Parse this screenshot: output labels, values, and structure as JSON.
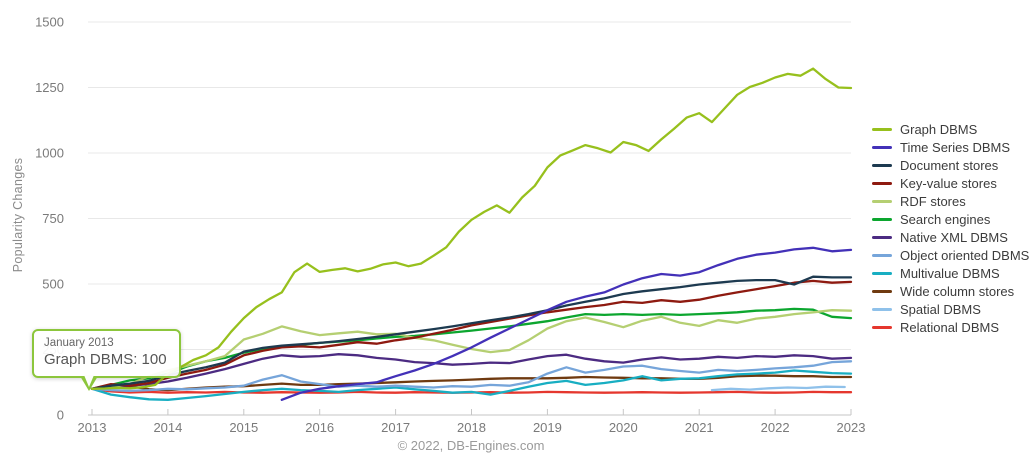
{
  "tooltip": {
    "title": "January 2013",
    "value": "Graph DBMS: 100"
  },
  "footer": "© 2022, DB-Engines.com",
  "chart_data": {
    "type": "line",
    "title": "",
    "xlabel": "",
    "ylabel": "Popularity Changes",
    "x_years": [
      2013,
      2014,
      2015,
      2016,
      2017,
      2018,
      2019,
      2020,
      2021,
      2022,
      2023
    ],
    "y_ticks": [
      0,
      250,
      500,
      750,
      1000,
      1250,
      1500
    ],
    "ylim": [
      0,
      1500
    ],
    "grid": true,
    "legend_position": "right",
    "x_unit": "months since January 2013",
    "series": [
      {
        "name": "Graph DBMS",
        "color": "#97c01d",
        "start_month": 0,
        "step_months": 2,
        "values": [
          100,
          101,
          104,
          102,
          106,
          115,
          158,
          183,
          210,
          228,
          258,
          318,
          370,
          412,
          442,
          468,
          545,
          578,
          546,
          554,
          560,
          548,
          558,
          575,
          582,
          568,
          578,
          608,
          640,
          700,
          745,
          775,
          800,
          772,
          830,
          875,
          945,
          990,
          1010,
          1030,
          1018,
          1002,
          1042,
          1030,
          1008,
          1052,
          1092,
          1135,
          1152,
          1118,
          1170,
          1222,
          1252,
          1268,
          1288,
          1302,
          1295,
          1322,
          1282,
          1250,
          1248
        ]
      },
      {
        "name": "Time Series DBMS",
        "color": "#4331b8",
        "start_month": 30,
        "step_months": 3,
        "values": [
          58,
          85,
          100,
          110,
          118,
          125,
          148,
          170,
          195,
          225,
          258,
          295,
          330,
          365,
          400,
          432,
          452,
          468,
          498,
          522,
          538,
          532,
          545,
          572,
          596,
          612,
          620,
          632,
          638,
          625,
          630
        ]
      },
      {
        "name": "Document stores",
        "color": "#1d3a50",
        "start_month": 0,
        "step_months": 3,
        "values": [
          100,
          112,
          120,
          130,
          152,
          168,
          182,
          200,
          242,
          256,
          265,
          270,
          275,
          282,
          290,
          298,
          308,
          318,
          328,
          338,
          350,
          362,
          372,
          385,
          400,
          418,
          432,
          445,
          462,
          472,
          480,
          488,
          498,
          505,
          512,
          515,
          515,
          498,
          528,
          525,
          525
        ]
      },
      {
        "name": "Key-value stores",
        "color": "#8e1a10",
        "start_month": 0,
        "step_months": 3,
        "values": [
          100,
          118,
          112,
          122,
          142,
          158,
          172,
          192,
          228,
          245,
          258,
          262,
          258,
          268,
          278,
          272,
          285,
          295,
          310,
          325,
          342,
          355,
          368,
          380,
          392,
          402,
          412,
          420,
          432,
          428,
          438,
          432,
          440,
          455,
          468,
          480,
          492,
          505,
          512,
          505,
          508
        ]
      },
      {
        "name": "RDF stores",
        "color": "#b5cf72",
        "start_month": 0,
        "step_months": 3,
        "values": [
          100,
          108,
          118,
          148,
          170,
          188,
          205,
          225,
          288,
          310,
          338,
          320,
          305,
          312,
          318,
          308,
          310,
          295,
          285,
          268,
          252,
          240,
          248,
          285,
          330,
          358,
          372,
          355,
          335,
          360,
          375,
          352,
          340,
          362,
          352,
          368,
          375,
          385,
          392,
          400,
          398
        ]
      },
      {
        "name": "Search engines",
        "color": "#0ca62f",
        "start_month": 0,
        "step_months": 3,
        "values": [
          100,
          115,
          132,
          140,
          158,
          185,
          205,
          218,
          238,
          252,
          262,
          268,
          275,
          280,
          285,
          292,
          298,
          302,
          308,
          315,
          322,
          330,
          338,
          348,
          358,
          372,
          385,
          382,
          385,
          382,
          385,
          382,
          385,
          388,
          392,
          398,
          400,
          405,
          402,
          375,
          370
        ]
      },
      {
        "name": "Native XML DBMS",
        "color": "#4c2b82",
        "start_month": 0,
        "step_months": 3,
        "values": [
          100,
          108,
          112,
          118,
          128,
          142,
          158,
          175,
          195,
          215,
          228,
          222,
          225,
          232,
          228,
          218,
          212,
          202,
          198,
          192,
          195,
          200,
          198,
          212,
          225,
          230,
          215,
          205,
          200,
          212,
          220,
          212,
          215,
          222,
          218,
          225,
          222,
          228,
          225,
          215,
          218
        ]
      },
      {
        "name": "Object oriented DBMS",
        "color": "#76a5da",
        "start_month": 0,
        "step_months": 3,
        "values": [
          100,
          95,
          92,
          95,
          100,
          98,
          102,
          105,
          112,
          135,
          152,
          128,
          118,
          108,
          112,
          108,
          112,
          108,
          105,
          110,
          108,
          115,
          112,
          125,
          158,
          182,
          162,
          172,
          185,
          188,
          175,
          168,
          162,
          172,
          168,
          172,
          178,
          182,
          188,
          202,
          205
        ]
      },
      {
        "name": "Multivalue DBMS",
        "color": "#18aec2",
        "start_month": 0,
        "step_months": 3,
        "values": [
          100,
          78,
          68,
          60,
          58,
          65,
          72,
          80,
          88,
          95,
          100,
          95,
          92,
          88,
          95,
          100,
          105,
          98,
          92,
          85,
          88,
          78,
          92,
          108,
          122,
          130,
          115,
          122,
          132,
          148,
          132,
          138,
          140,
          148,
          155,
          158,
          162,
          170,
          165,
          160,
          158
        ]
      },
      {
        "name": "Wide column stores",
        "color": "#6f3a10",
        "start_month": 0,
        "step_months": 3,
        "values": [
          100,
          105,
          110,
          98,
          95,
          100,
          105,
          108,
          110,
          115,
          120,
          115,
          115,
          118,
          120,
          122,
          125,
          128,
          130,
          132,
          135,
          138,
          140,
          140,
          140,
          142,
          145,
          143,
          142,
          140,
          140,
          138,
          138,
          142,
          148,
          150,
          150,
          148,
          148,
          145,
          145
        ]
      },
      {
        "name": "Spatial DBMS",
        "color": "#8fc1ea",
        "start_month": 98,
        "step_months": 3,
        "values": [
          95,
          100,
          97,
          102,
          105,
          103,
          108,
          107
        ]
      },
      {
        "name": "Relational DBMS",
        "color": "#e5372e",
        "start_month": 0,
        "step_months": 3,
        "values": [
          100,
          90,
          86,
          88,
          85,
          87,
          86,
          88,
          86,
          85,
          87,
          86,
          85,
          86,
          88,
          86,
          85,
          87,
          86,
          85,
          86,
          87,
          85,
          86,
          88,
          87,
          86,
          85,
          86,
          87,
          86,
          85,
          86,
          87,
          88,
          86,
          85,
          86,
          88,
          87,
          87
        ]
      }
    ]
  }
}
